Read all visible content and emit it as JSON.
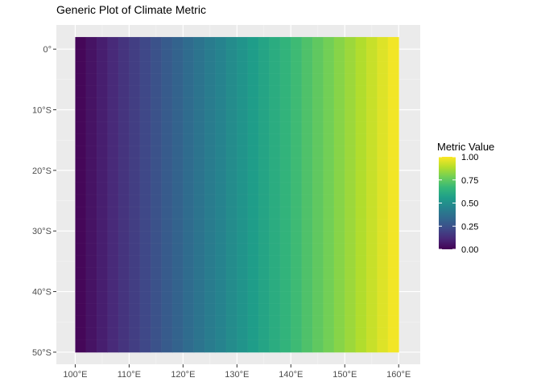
{
  "chart_data": {
    "type": "heatmap",
    "title": "Generic Plot of Climate Metric",
    "xlabel": "",
    "ylabel": "",
    "x_ticks": [
      {
        "value": 100,
        "label": "100°E"
      },
      {
        "value": 110,
        "label": "110°E"
      },
      {
        "value": 120,
        "label": "120°E"
      },
      {
        "value": 130,
        "label": "130°E"
      },
      {
        "value": 140,
        "label": "140°E"
      },
      {
        "value": 150,
        "label": "150°E"
      },
      {
        "value": 160,
        "label": "160°E"
      }
    ],
    "y_ticks": [
      {
        "value": 0,
        "label": "0°"
      },
      {
        "value": -10,
        "label": "10°S"
      },
      {
        "value": -20,
        "label": "20°S"
      },
      {
        "value": -30,
        "label": "30°S"
      },
      {
        "value": -40,
        "label": "40°S"
      },
      {
        "value": -50,
        "label": "50°S"
      }
    ],
    "xlim": [
      96.5,
      164
    ],
    "ylim": [
      -52,
      4
    ],
    "grid": true,
    "background": "#ebebeb",
    "x_range": [
      100,
      160
    ],
    "y_range": [
      -50,
      2
    ],
    "cell_size": 2,
    "value_rule": "metric value increases linearly from 0 at 100°E to 1 at 160°E, constant across latitude",
    "colorscale": "viridis",
    "colorscale_stops": [
      "#440154",
      "#482878",
      "#3e4a89",
      "#31688e",
      "#26828e",
      "#1f9e89",
      "#35b779",
      "#6ece58",
      "#b5de2b",
      "#fde725"
    ],
    "legend": {
      "title": "Metric Value",
      "position": "right",
      "range": [
        0,
        1
      ],
      "ticks": [
        {
          "value": 0.0,
          "label": "0.00"
        },
        {
          "value": 0.25,
          "label": "0.25"
        },
        {
          "value": 0.5,
          "label": "0.50"
        },
        {
          "value": 0.75,
          "label": "0.75"
        },
        {
          "value": 1.0,
          "label": "1.00"
        }
      ]
    }
  }
}
